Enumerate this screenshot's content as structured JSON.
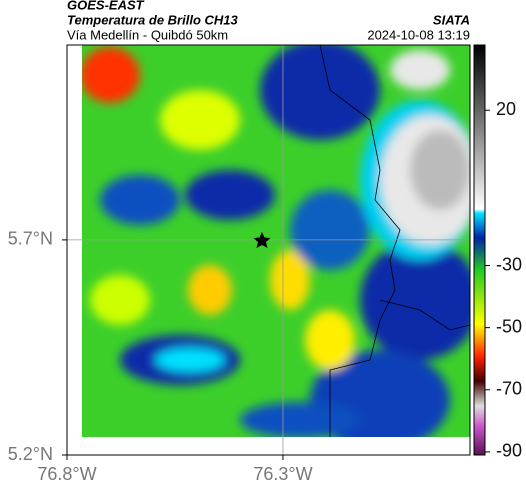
{
  "header": {
    "title": "GOES-EAST",
    "subtitle": "Temperatura de Brillo CH13",
    "route": "Vía Medellín - Quibdó 50km",
    "source": "SIATA",
    "timestamp": "2024-10-08 13:19"
  },
  "map": {
    "xlim": [
      -76.8,
      -75.867
    ],
    "ylim": [
      5.2,
      6.153
    ],
    "xticks": [
      {
        "value": -76.8,
        "label": "76.8°W"
      },
      {
        "value": -76.3,
        "label": "76.3°W"
      }
    ],
    "yticks": [
      {
        "value": 5.7,
        "label": "5.7°N"
      },
      {
        "value": 5.2,
        "label": "5.2°N"
      }
    ],
    "grid": true
  },
  "colorbar": {
    "lim": [
      -91,
      41
    ],
    "ticks": [
      20,
      -30,
      -50,
      -70,
      -90
    ]
  }
}
